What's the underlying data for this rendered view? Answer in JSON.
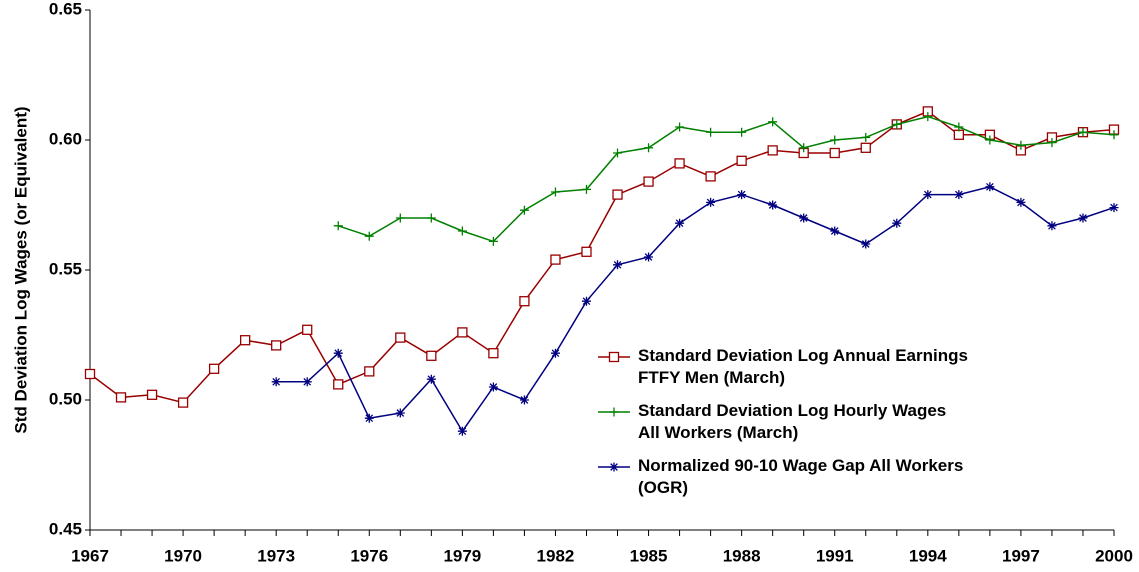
{
  "chart_data": {
    "type": "line",
    "y_label": "Std Deviation Log Wages (or Equivalent)",
    "x": [
      1967,
      1968,
      1969,
      1970,
      1971,
      1972,
      1973,
      1974,
      1975,
      1976,
      1977,
      1978,
      1979,
      1980,
      1981,
      1982,
      1983,
      1984,
      1985,
      1986,
      1987,
      1988,
      1989,
      1990,
      1991,
      1992,
      1993,
      1994,
      1995,
      1996,
      1997,
      1998,
      1999,
      2000
    ],
    "xlim": [
      1967,
      2000
    ],
    "xticks": [
      1967,
      1970,
      1973,
      1976,
      1979,
      1982,
      1985,
      1988,
      1991,
      1994,
      1997,
      2000
    ],
    "ylim": [
      0.45,
      0.65
    ],
    "yticks": [
      0.45,
      {
        "value": 0.5,
        "label": "0.50"
      },
      0.55,
      {
        "value": 0.6,
        "label": "0.60"
      },
      0.65
    ],
    "grid": false,
    "series": [
      {
        "name": "Standard Deviation Log Annual Earnings\nFTFY Men (March)",
        "color": "#990000",
        "marker": "square",
        "values": [
          0.51,
          0.501,
          0.502,
          0.499,
          0.512,
          0.523,
          0.521,
          0.527,
          0.506,
          0.511,
          0.524,
          0.517,
          0.526,
          0.518,
          0.538,
          0.554,
          0.557,
          0.579,
          0.584,
          0.591,
          0.586,
          0.592,
          0.596,
          0.595,
          0.595,
          0.597,
          0.606,
          0.611,
          0.602,
          0.602,
          0.596,
          0.601,
          0.603,
          0.604
        ]
      },
      {
        "name": "Standard Deviation Log Hourly Wages\nAll Workers (March)",
        "color": "#008000",
        "marker": "plus",
        "values": [
          null,
          null,
          null,
          null,
          null,
          null,
          null,
          null,
          0.567,
          0.563,
          0.57,
          0.57,
          0.565,
          0.561,
          0.573,
          0.58,
          0.581,
          0.595,
          0.597,
          0.605,
          0.603,
          0.603,
          0.607,
          0.597,
          0.6,
          0.601,
          0.606,
          0.609,
          0.605,
          0.6,
          0.598,
          0.599,
          0.603,
          0.602
        ]
      },
      {
        "name": "Normalized 90-10 Wage Gap All Workers\n(OGR)",
        "color": "#000080",
        "marker": "star",
        "values": [
          null,
          null,
          null,
          null,
          null,
          null,
          0.507,
          0.507,
          0.518,
          0.493,
          0.495,
          0.508,
          0.488,
          0.505,
          0.5,
          0.518,
          0.538,
          0.552,
          0.555,
          0.568,
          0.576,
          0.579,
          0.575,
          0.57,
          0.565,
          0.56,
          0.568,
          0.579,
          0.579,
          0.582,
          0.576,
          0.567,
          0.57,
          0.574
        ]
      }
    ]
  }
}
